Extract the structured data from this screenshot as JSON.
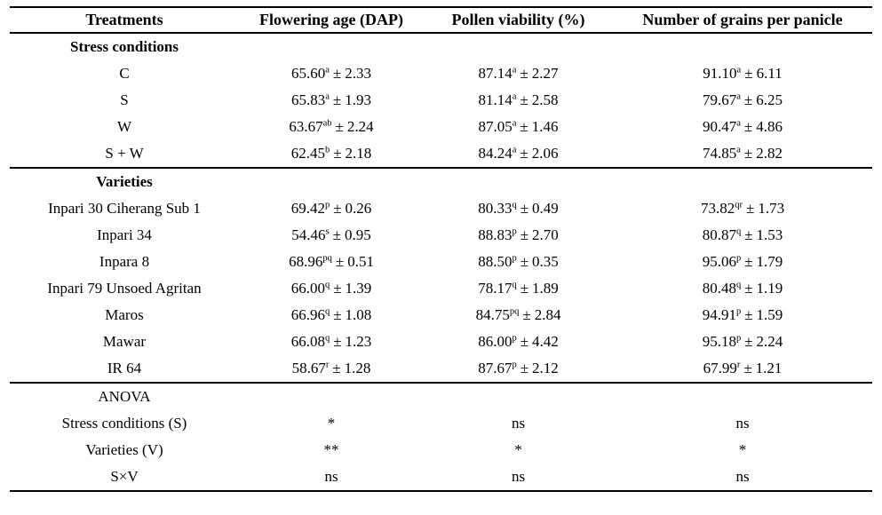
{
  "table": {
    "pm": "±",
    "columns": [
      "Treatments",
      "Flowering age (DAP)",
      "Pollen viability (%)",
      "Number of grains per panicle"
    ],
    "sections": [
      {
        "header": "Stress conditions",
        "header_bold": true,
        "rows": [
          {
            "treatment": "C",
            "cells": [
              {
                "mean": "65.60",
                "sup": "a",
                "sd": "2.33"
              },
              {
                "mean": "87.14",
                "sup": "a",
                "sd": "2.27"
              },
              {
                "mean": "91.10",
                "sup": "a",
                "sd": "6.11"
              }
            ]
          },
          {
            "treatment": "S",
            "cells": [
              {
                "mean": "65.83",
                "sup": "a",
                "sd": "1.93"
              },
              {
                "mean": "81.14",
                "sup": "a",
                "sd": "2.58"
              },
              {
                "mean": "79.67",
                "sup": "a",
                "sd": "6.25"
              }
            ]
          },
          {
            "treatment": "W",
            "cells": [
              {
                "mean": "63.67",
                "sup": "ab",
                "sd": "2.24"
              },
              {
                "mean": "87.05",
                "sup": "a",
                "sd": "1.46"
              },
              {
                "mean": "90.47",
                "sup": "a",
                "sd": "4.86"
              }
            ]
          },
          {
            "treatment": "S + W",
            "cells": [
              {
                "mean": "62.45",
                "sup": "b",
                "sd": "2.18"
              },
              {
                "mean": "84.24",
                "sup": "a",
                "sd": "2.06"
              },
              {
                "mean": "74.85",
                "sup": "a",
                "sd": "2.82"
              }
            ]
          }
        ]
      },
      {
        "header": "Varieties",
        "header_bold": true,
        "rows": [
          {
            "treatment": "Inpari 30 Ciherang Sub 1",
            "cells": [
              {
                "mean": "69.42",
                "sup": "p",
                "sd": "0.26"
              },
              {
                "mean": "80.33",
                "sup": "q",
                "sd": "0.49"
              },
              {
                "mean": "73.82",
                "sup": "qr",
                "sd": "1.73"
              }
            ]
          },
          {
            "treatment": "Inpari 34",
            "cells": [
              {
                "mean": "54.46",
                "sup": "s",
                "sd": "0.95"
              },
              {
                "mean": "88.83",
                "sup": "p",
                "sd": "2.70"
              },
              {
                "mean": "80.87",
                "sup": "q",
                "sd": "1.53"
              }
            ]
          },
          {
            "treatment": "Inpara 8",
            "cells": [
              {
                "mean": "68.96",
                "sup": "pq",
                "sd": "0.51"
              },
              {
                "mean": "88.50",
                "sup": "p",
                "sd": "0.35"
              },
              {
                "mean": "95.06",
                "sup": "p",
                "sd": "1.79"
              }
            ]
          },
          {
            "treatment": "Inpari 79 Unsoed Agritan",
            "cells": [
              {
                "mean": "66.00",
                "sup": "q",
                "sd": "1.39"
              },
              {
                "mean": "78.17",
                "sup": "q",
                "sd": "1.89"
              },
              {
                "mean": "80.48",
                "sup": "q",
                "sd": "1.19"
              }
            ]
          },
          {
            "treatment": "Maros",
            "cells": [
              {
                "mean": "66.96",
                "sup": "q",
                "sd": "1.08"
              },
              {
                "mean": "84.75",
                "sup": "pq",
                "sd": "2.84"
              },
              {
                "mean": "94.91",
                "sup": "p",
                "sd": "1.59"
              }
            ]
          },
          {
            "treatment": "Mawar",
            "cells": [
              {
                "mean": "66.08",
                "sup": "q",
                "sd": "1.23"
              },
              {
                "mean": "86.00",
                "sup": "p",
                "sd": "4.42"
              },
              {
                "mean": "95.18",
                "sup": "p",
                "sd": "2.24"
              }
            ]
          },
          {
            "treatment": "IR 64",
            "cells": [
              {
                "mean": "58.67",
                "sup": "r",
                "sd": "1.28"
              },
              {
                "mean": "87.67",
                "sup": "p",
                "sd": "2.12"
              },
              {
                "mean": "67.99",
                "sup": "r",
                "sd": "1.21"
              }
            ]
          }
        ]
      },
      {
        "header": "ANOVA",
        "header_bold": false,
        "rows": [
          {
            "treatment": "Stress conditions (S)",
            "cells": [
              {
                "text": "*"
              },
              {
                "text": "ns"
              },
              {
                "text": "ns"
              }
            ]
          },
          {
            "treatment": "Varieties (V)",
            "cells": [
              {
                "text": "**"
              },
              {
                "text": "*"
              },
              {
                "text": "*"
              }
            ]
          },
          {
            "treatment": "S×V",
            "cells": [
              {
                "text": "ns"
              },
              {
                "text": "ns"
              },
              {
                "text": "ns"
              }
            ]
          }
        ]
      }
    ]
  }
}
